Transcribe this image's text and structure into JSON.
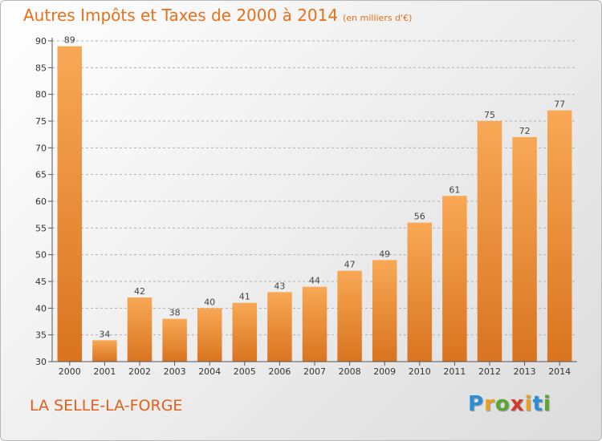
{
  "header": {
    "title": "Autres Impôts et Taxes de 2000 à 2014",
    "unit": "(en milliers d'€)"
  },
  "footer": {
    "commune": "LA SELLE-LA-FORGE",
    "logo_letters": [
      {
        "ch": "P",
        "color": "#2b8fd6"
      },
      {
        "ch": "r",
        "color": "#e8a020"
      },
      {
        "ch": "o",
        "color": "#5aa82e"
      },
      {
        "ch": "x",
        "color": "#d63a2b"
      },
      {
        "ch": "i",
        "color": "#e8a020"
      },
      {
        "ch": "t",
        "color": "#2b8fd6"
      },
      {
        "ch": "i",
        "color": "#5aa82e"
      }
    ]
  },
  "colors": {
    "bar_light": "#f8a855",
    "bar_dark": "#d97420",
    "grid": "#b0b0b0"
  },
  "chart_data": {
    "type": "bar",
    "categories": [
      "2000",
      "2001",
      "2002",
      "2003",
      "2004",
      "2005",
      "2006",
      "2007",
      "2008",
      "2009",
      "2010",
      "2011",
      "2012",
      "2013",
      "2014"
    ],
    "values": [
      89,
      34,
      42,
      38,
      40,
      41,
      43,
      44,
      47,
      49,
      56,
      61,
      75,
      72,
      77
    ],
    "ylim": [
      30,
      90
    ],
    "yticks": [
      30,
      35,
      40,
      45,
      50,
      55,
      60,
      65,
      70,
      75,
      80,
      85,
      90
    ],
    "grid": "horizontal-dashed",
    "legend": "none"
  }
}
